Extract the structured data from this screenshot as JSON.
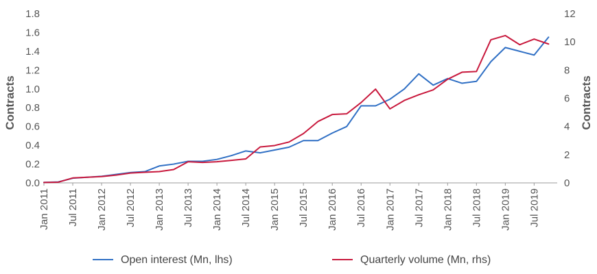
{
  "chart_data": {
    "type": "line",
    "title": "",
    "x_start": "2011-01",
    "x_step_months": 3,
    "xticks": [
      "Jan 2011",
      "Jul 2011",
      "Jan 2012",
      "Jul 2012",
      "Jan 2013",
      "Jul 2013",
      "Jan 2014",
      "Jul 2014",
      "Jan 2015",
      "Jul 2015",
      "Jan 2016",
      "Jul 2016",
      "Jan 2017",
      "Jul 2017",
      "Jan 2018",
      "Jul 2018",
      "Jan 2019",
      "Jul 2019"
    ],
    "y_left": {
      "label": "Contracts",
      "ylim": [
        0,
        1.8
      ],
      "ticks": [
        "0.0",
        "0.2",
        "0.4",
        "0.6",
        "0.8",
        "1.0",
        "1.2",
        "1.4",
        "1.6",
        "1.8"
      ]
    },
    "y_right": {
      "label": "Contracts",
      "ylim": [
        0,
        12
      ],
      "ticks": [
        "0",
        "2",
        "4",
        "6",
        "8",
        "10",
        "12"
      ]
    },
    "series": [
      {
        "name": "Open interest (Mn, lhs)",
        "axis": "left",
        "color": "#2f6fc4",
        "values": [
          0.005,
          0.01,
          0.05,
          0.06,
          0.07,
          0.09,
          0.11,
          0.12,
          0.18,
          0.2,
          0.23,
          0.23,
          0.25,
          0.29,
          0.34,
          0.32,
          0.35,
          0.38,
          0.45,
          0.45,
          0.53,
          0.6,
          0.82,
          0.82,
          0.89,
          1.0,
          1.16,
          1.04,
          1.11,
          1.06,
          1.08,
          1.29,
          1.44,
          1.4,
          1.36,
          1.55
        ]
      },
      {
        "name": "Quarterly volume (Mn, rhs)",
        "axis": "right",
        "color": "#c8183c",
        "values": [
          0.03,
          0.05,
          0.35,
          0.4,
          0.45,
          0.55,
          0.7,
          0.75,
          0.8,
          0.95,
          1.5,
          1.45,
          1.5,
          1.6,
          1.7,
          2.55,
          2.65,
          2.9,
          3.5,
          4.35,
          4.85,
          4.9,
          5.7,
          6.65,
          5.25,
          5.85,
          6.25,
          6.6,
          7.35,
          7.85,
          7.9,
          10.15,
          10.45,
          9.8,
          10.2,
          9.85
        ]
      }
    ],
    "legend": {
      "placement": "bottom",
      "entries": [
        "Open interest (Mn, lhs)",
        "Quarterly volume (Mn, rhs)"
      ]
    },
    "grid": false
  }
}
